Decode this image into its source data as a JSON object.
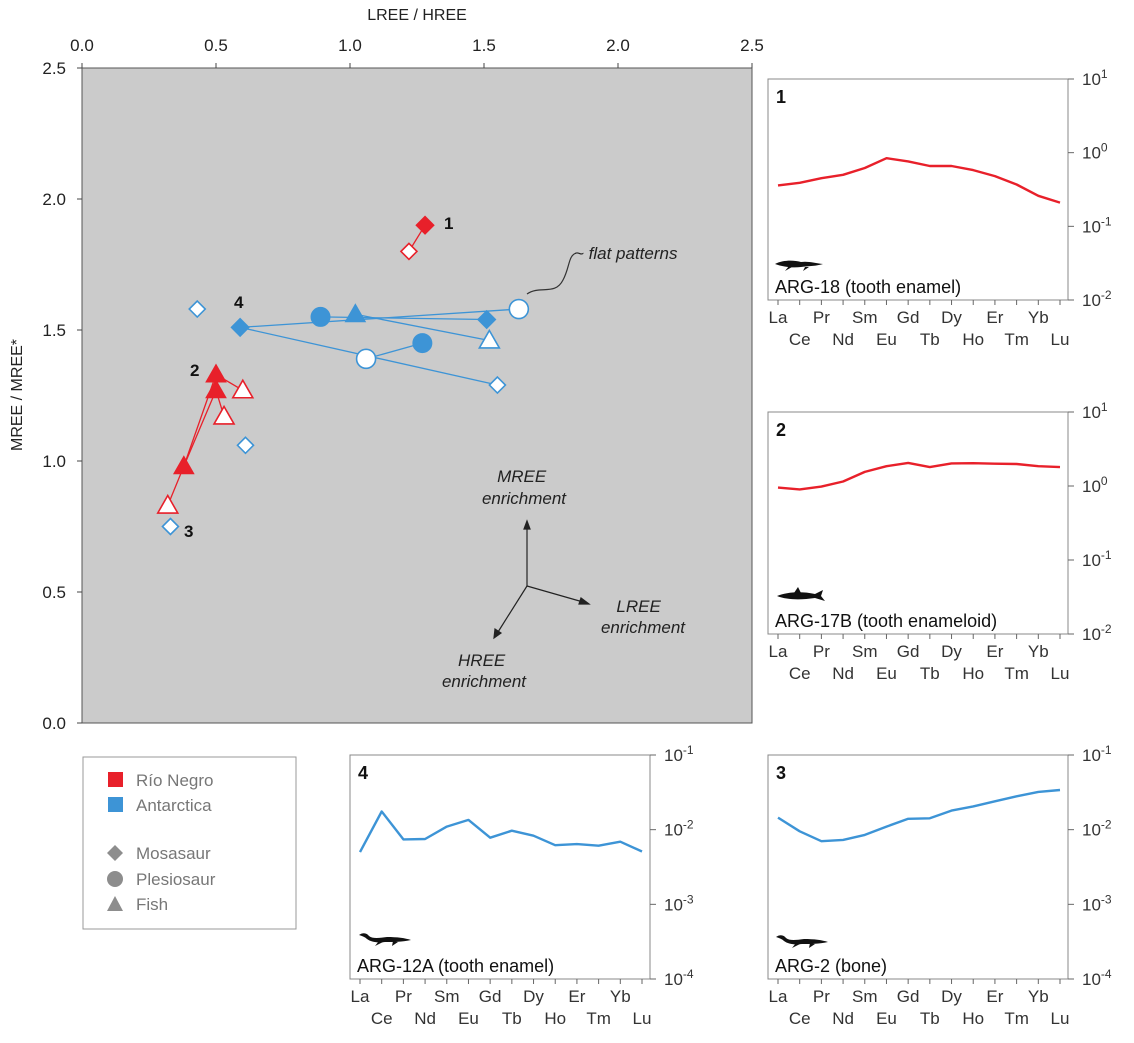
{
  "chart_data": [
    {
      "id": "main",
      "type": "scatter",
      "xlabel": "LREE / HREE",
      "ylabel": "MREE / MREE*",
      "xlim": [
        0,
        2.5
      ],
      "ylim": [
        0,
        2.5
      ],
      "x_ticks": [
        "0.0",
        "0.5",
        "1.0",
        "1.5",
        "2.0",
        "2.5"
      ],
      "y_ticks": [
        "0.0",
        "0.5",
        "1.0",
        "1.5",
        "2.0",
        "2.5"
      ],
      "background": "#cbcbcb",
      "colors": {
        "rio_negro": "#e8202a",
        "antarctica": "#3d94d6"
      },
      "points": [
        {
          "x": 1.28,
          "y": 1.9,
          "shape": "diamond",
          "group": "rio_negro",
          "fill": "solid"
        },
        {
          "x": 1.22,
          "y": 1.8,
          "shape": "diamond",
          "group": "rio_negro",
          "fill": "open"
        },
        {
          "x": 0.5,
          "y": 1.33,
          "shape": "triangle",
          "group": "rio_negro",
          "fill": "solid"
        },
        {
          "x": 0.5,
          "y": 1.27,
          "shape": "triangle",
          "group": "rio_negro",
          "fill": "solid"
        },
        {
          "x": 0.38,
          "y": 0.98,
          "shape": "triangle",
          "group": "rio_negro",
          "fill": "solid"
        },
        {
          "x": 0.6,
          "y": 1.27,
          "shape": "triangle",
          "group": "rio_negro",
          "fill": "open"
        },
        {
          "x": 0.53,
          "y": 1.17,
          "shape": "triangle",
          "group": "rio_negro",
          "fill": "open"
        },
        {
          "x": 0.32,
          "y": 0.83,
          "shape": "triangle",
          "group": "rio_negro",
          "fill": "open"
        },
        {
          "x": 0.59,
          "y": 1.51,
          "shape": "diamond",
          "group": "antarctica",
          "fill": "solid"
        },
        {
          "x": 1.51,
          "y": 1.54,
          "shape": "diamond",
          "group": "antarctica",
          "fill": "solid"
        },
        {
          "x": 0.43,
          "y": 1.58,
          "shape": "diamond",
          "group": "antarctica",
          "fill": "open"
        },
        {
          "x": 1.55,
          "y": 1.29,
          "shape": "diamond",
          "group": "antarctica",
          "fill": "open"
        },
        {
          "x": 0.61,
          "y": 1.06,
          "shape": "diamond",
          "group": "antarctica",
          "fill": "open"
        },
        {
          "x": 0.33,
          "y": 0.75,
          "shape": "diamond",
          "group": "antarctica",
          "fill": "open"
        },
        {
          "x": 0.89,
          "y": 1.55,
          "shape": "circle",
          "group": "antarctica",
          "fill": "solid"
        },
        {
          "x": 1.27,
          "y": 1.45,
          "shape": "circle",
          "group": "antarctica",
          "fill": "solid"
        },
        {
          "x": 1.63,
          "y": 1.58,
          "shape": "circle",
          "group": "antarctica",
          "fill": "open"
        },
        {
          "x": 1.06,
          "y": 1.39,
          "shape": "circle",
          "group": "antarctica",
          "fill": "open"
        },
        {
          "x": 1.02,
          "y": 1.56,
          "shape": "triangle",
          "group": "antarctica",
          "fill": "solid"
        },
        {
          "x": 1.52,
          "y": 1.46,
          "shape": "triangle",
          "group": "antarctica",
          "fill": "open"
        }
      ],
      "links": [
        {
          "from": [
            1.28,
            1.9
          ],
          "to": [
            1.22,
            1.8
          ],
          "group": "rio_negro"
        },
        {
          "from": [
            0.5,
            1.33
          ],
          "to": [
            0.6,
            1.27
          ],
          "group": "rio_negro"
        },
        {
          "from": [
            0.5,
            1.27
          ],
          "to": [
            0.53,
            1.17
          ],
          "group": "rio_negro"
        },
        {
          "from": [
            0.38,
            0.98
          ],
          "to": [
            0.32,
            0.83
          ],
          "group": "rio_negro"
        },
        {
          "from": [
            0.38,
            0.98
          ],
          "to": [
            0.5,
            1.33
          ],
          "group": "rio_negro"
        },
        {
          "from": [
            0.38,
            0.98
          ],
          "to": [
            0.5,
            1.27
          ],
          "group": "rio_negro"
        },
        {
          "from": [
            0.59,
            1.51
          ],
          "to": [
            1.63,
            1.58
          ],
          "group": "antarctica"
        },
        {
          "from": [
            0.59,
            1.51
          ],
          "to": [
            1.55,
            1.29
          ],
          "group": "antarctica"
        },
        {
          "from": [
            0.89,
            1.55
          ],
          "to": [
            1.51,
            1.54
          ],
          "group": "antarctica"
        },
        {
          "from": [
            1.02,
            1.56
          ],
          "to": [
            1.52,
            1.46
          ],
          "group": "antarctica"
        },
        {
          "from": [
            1.27,
            1.45
          ],
          "to": [
            1.06,
            1.39
          ],
          "group": "antarctica"
        }
      ],
      "point_labels": [
        "1",
        "2",
        "3",
        "4"
      ],
      "annotations": {
        "flat": "~ flat patterns",
        "mree": [
          "MREE",
          "enrichment"
        ],
        "lree": [
          "LREE",
          "enrichment"
        ],
        "hree": [
          "HREE",
          "enrichment"
        ]
      }
    },
    {
      "id": "pattern-1",
      "type": "line",
      "number": "1",
      "label": "ARG-18 (tooth enamel)",
      "color": "#e8202a",
      "y_scale": "log",
      "ylim": [
        0.01,
        10
      ],
      "y_ticks": [
        {
          "base": "10",
          "exp": "1",
          "value": 10
        },
        {
          "base": "10",
          "exp": "0",
          "value": 1
        },
        {
          "base": "10",
          "exp": "-1",
          "value": 0.1
        },
        {
          "base": "10",
          "exp": "-2",
          "value": 0.01
        }
      ],
      "values": [
        0.36,
        0.39,
        0.45,
        0.5,
        0.62,
        0.84,
        0.76,
        0.66,
        0.66,
        0.58,
        0.48,
        0.37,
        0.26,
        0.21
      ]
    },
    {
      "id": "pattern-2",
      "type": "line",
      "number": "2",
      "label": "ARG-17B (tooth enameloid)",
      "color": "#e8202a",
      "y_scale": "log",
      "ylim": [
        0.01,
        10
      ],
      "y_ticks": [
        {
          "base": "10",
          "exp": "1",
          "value": 10
        },
        {
          "base": "10",
          "exp": "0",
          "value": 1
        },
        {
          "base": "10",
          "exp": "-1",
          "value": 0.1
        },
        {
          "base": "10",
          "exp": "-2",
          "value": 0.01
        }
      ],
      "values": [
        0.95,
        0.9,
        0.98,
        1.15,
        1.55,
        1.85,
        2.05,
        1.8,
        2.02,
        2.03,
        2.0,
        1.98,
        1.85,
        1.8
      ]
    },
    {
      "id": "pattern-4",
      "type": "line",
      "number": "4",
      "label": "ARG-12A (tooth enamel)",
      "color": "#3d94d6",
      "y_scale": "log",
      "ylim": [
        0.0001,
        0.1
      ],
      "y_ticks": [
        {
          "base": "10",
          "exp": "-1",
          "value": 0.1
        },
        {
          "base": "10",
          "exp": "-2",
          "value": 0.01
        },
        {
          "base": "10",
          "exp": "-3",
          "value": 0.001
        },
        {
          "base": "10",
          "exp": "-4",
          "value": 0.0001
        }
      ],
      "values": [
        0.005,
        0.0175,
        0.0074,
        0.0075,
        0.011,
        0.0135,
        0.0078,
        0.0097,
        0.0083,
        0.0062,
        0.0064,
        0.0061,
        0.0069,
        0.0051
      ]
    },
    {
      "id": "pattern-3",
      "type": "line",
      "number": "3",
      "label": "ARG-2 (bone)",
      "color": "#3d94d6",
      "y_scale": "log",
      "ylim": [
        0.0001,
        0.1
      ],
      "y_ticks": [
        {
          "base": "10",
          "exp": "-1",
          "value": 0.1
        },
        {
          "base": "10",
          "exp": "-2",
          "value": 0.01
        },
        {
          "base": "10",
          "exp": "-3",
          "value": 0.001
        },
        {
          "base": "10",
          "exp": "-4",
          "value": 0.0001
        }
      ],
      "values": [
        0.0145,
        0.0095,
        0.007,
        0.0073,
        0.0085,
        0.011,
        0.014,
        0.0142,
        0.018,
        0.0205,
        0.024,
        0.028,
        0.032,
        0.034
      ]
    }
  ],
  "ree_elements_top": [
    "La",
    "Pr",
    "Sm",
    "Gd",
    "Dy",
    "Er",
    "Yb"
  ],
  "ree_elements_bottom": [
    "Ce",
    "Nd",
    "Eu",
    "Tb",
    "Ho",
    "Tm",
    "Lu"
  ],
  "legend": {
    "localities": [
      {
        "label": "Río Negro",
        "color": "#e8202a"
      },
      {
        "label": "Antarctica",
        "color": "#3d94d6"
      }
    ],
    "taxa": [
      {
        "label": "Mosasaur",
        "shape": "diamond"
      },
      {
        "label": "Plesiosaur",
        "shape": "circle"
      },
      {
        "label": "Fish",
        "shape": "triangle"
      }
    ],
    "symbol_color": "#8d8d8d"
  }
}
